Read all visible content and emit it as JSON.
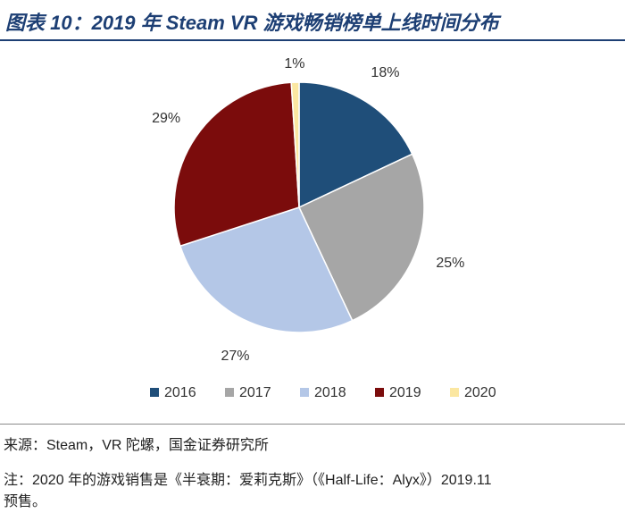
{
  "header": {
    "title": "图表 10：2019 年 Steam VR 游戏畅销榜单上线时间分布"
  },
  "chart_data": {
    "type": "pie",
    "title": "",
    "categories": [
      "2016",
      "2017",
      "2018",
      "2019",
      "2020"
    ],
    "values": [
      18,
      25,
      27,
      29,
      1
    ],
    "labels": [
      "18%",
      "25%",
      "27%",
      "29%",
      "1%"
    ],
    "colors": [
      "#1f4e79",
      "#a6a6a6",
      "#b4c7e7",
      "#7b0c0c",
      "#fbe7a1"
    ],
    "start": "12 o'clock, clockwise",
    "legend_position": "bottom"
  },
  "footer": {
    "source": "来源：Steam，VR 陀螺，国金证券研究所",
    "note_line1": "注：2020 年的游戏销售是《半衰期：爱莉克斯》（《Half-Life：Alyx》）2019.11",
    "note_line2": "预售。"
  }
}
